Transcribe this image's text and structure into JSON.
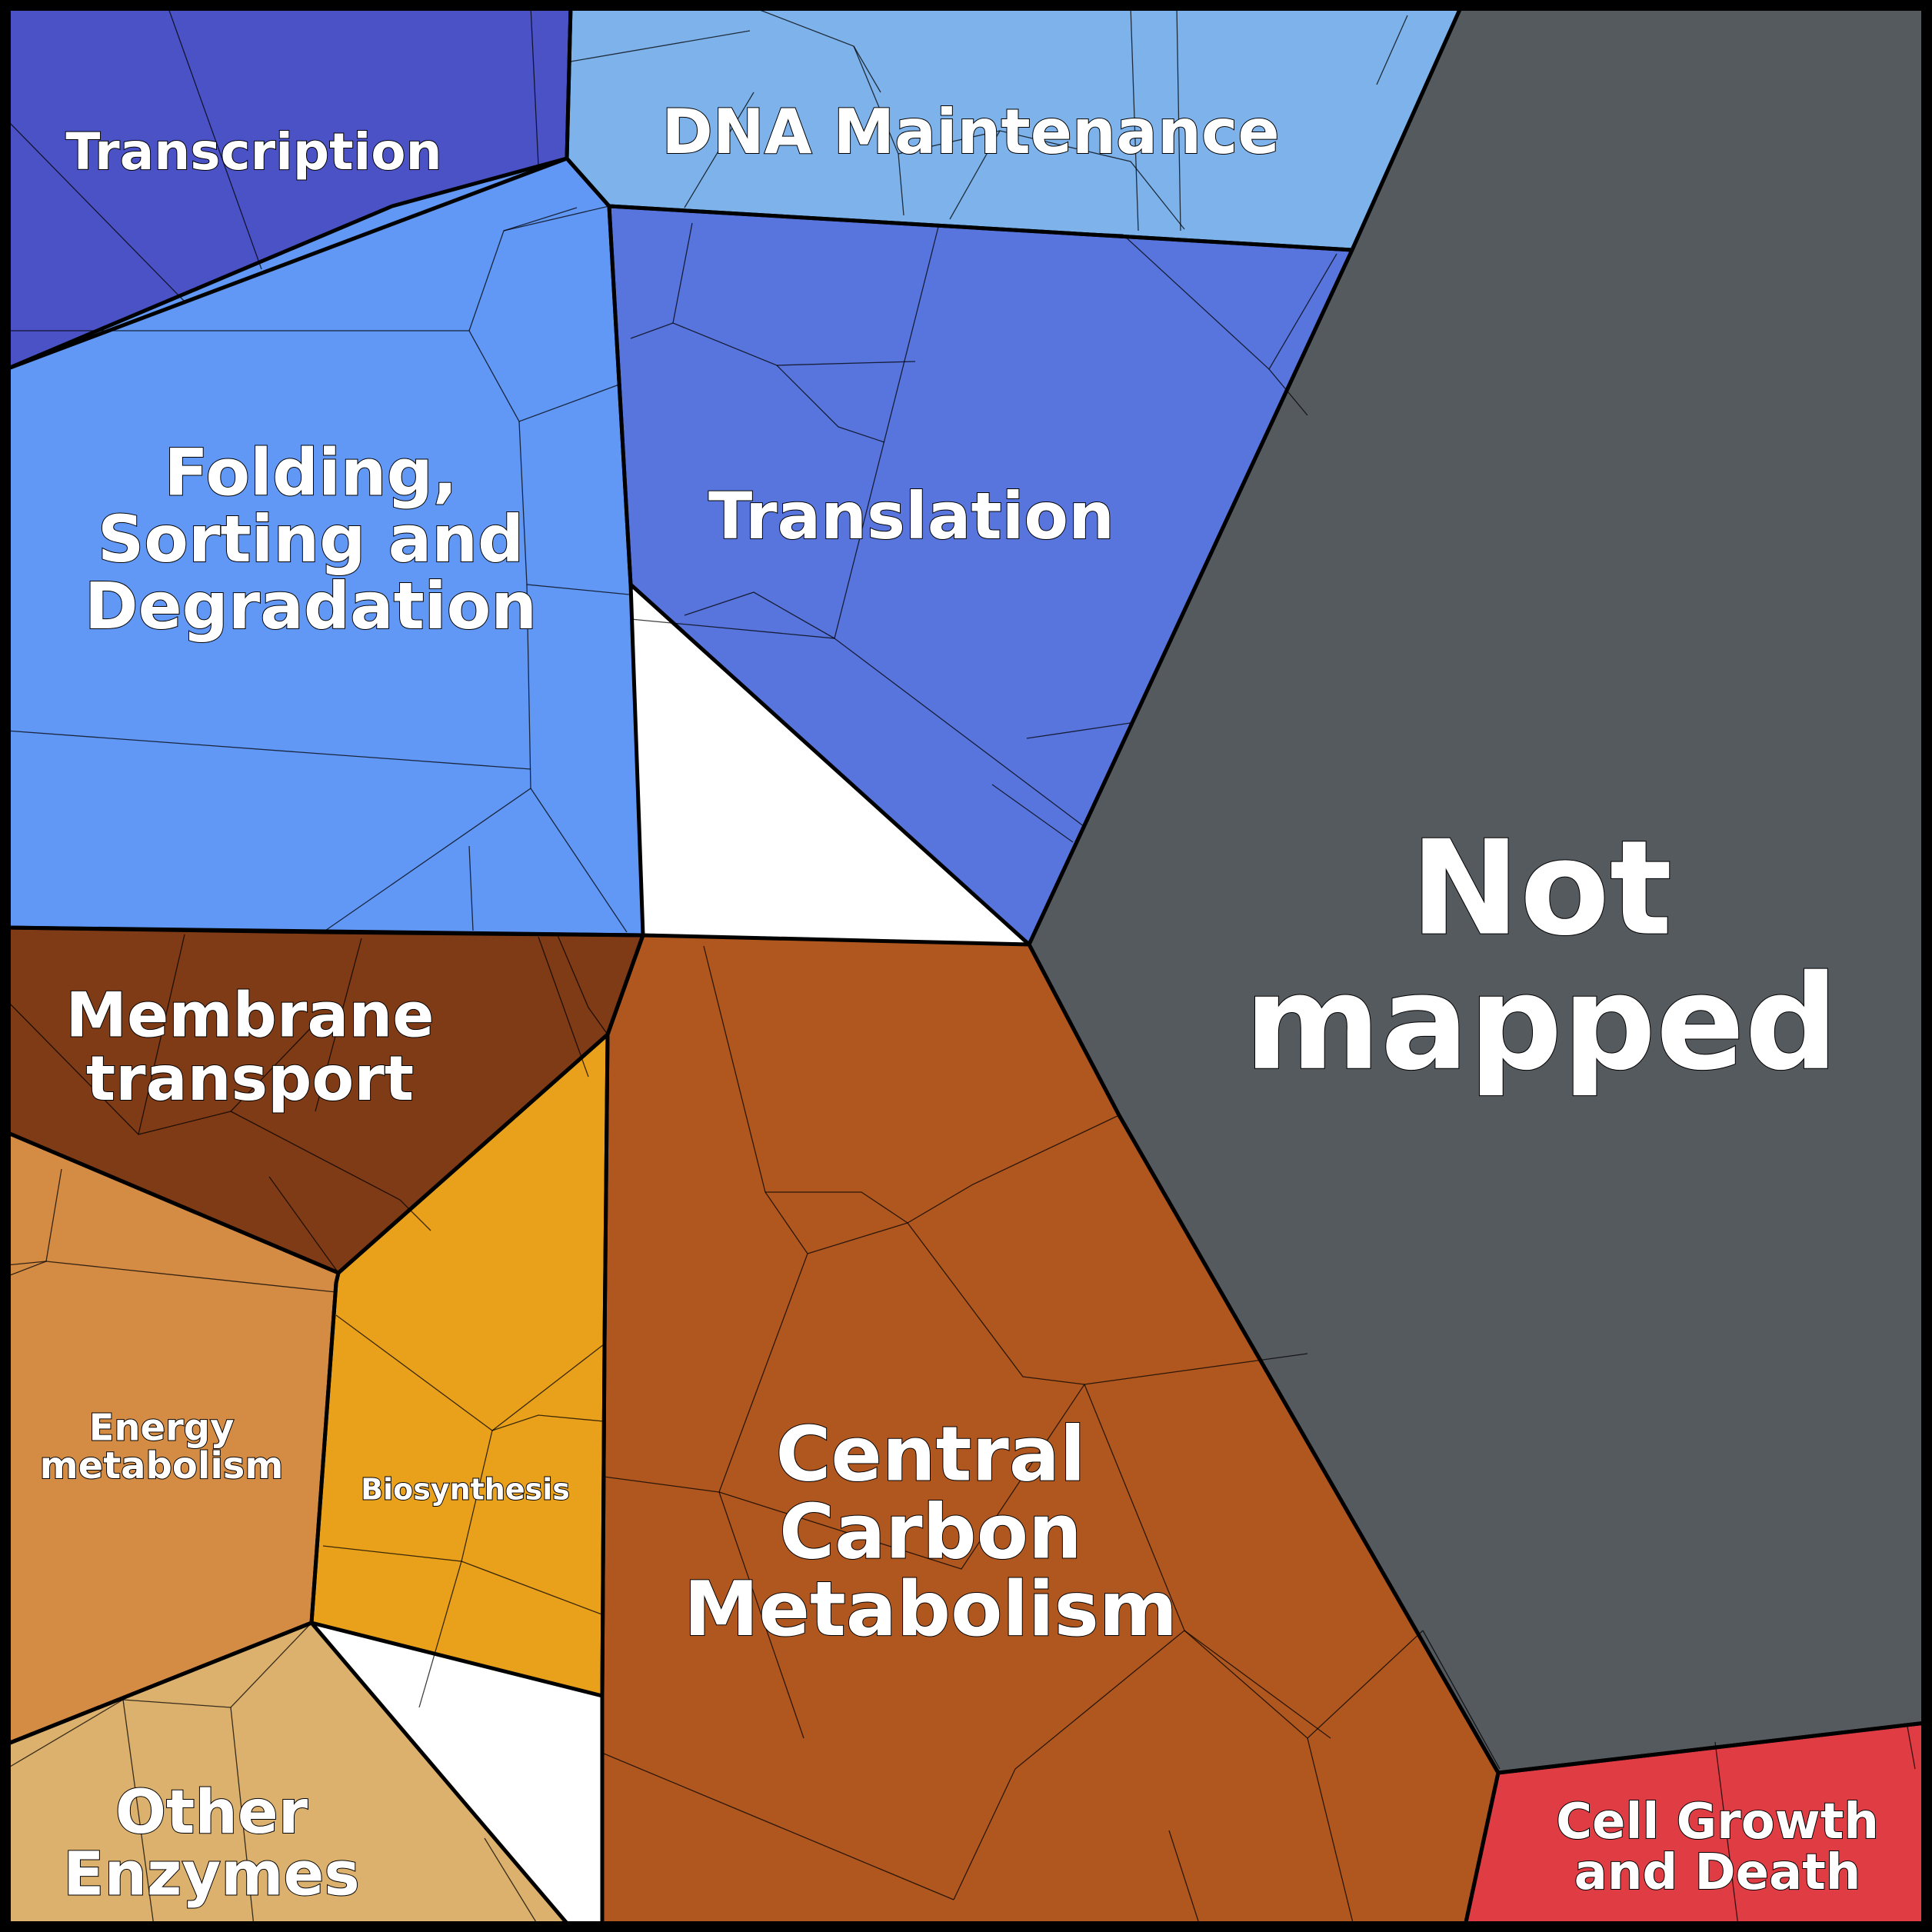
{
  "chart_data": {
    "type": "voronoi-treemap",
    "title": "",
    "categories": [
      {
        "name": "Transcription",
        "label_lines": [
          "Transcription"
        ],
        "color": "#4a52c6"
      },
      {
        "name": "DNA Maintenance",
        "label_lines": [
          "DNA Maintenance"
        ],
        "color": "#7db2ea"
      },
      {
        "name": "Translation",
        "label_lines": [
          "Translation"
        ],
        "color": "#5875dd"
      },
      {
        "name": "Folding, Sorting and Degradation",
        "label_lines": [
          "Folding,",
          "Sorting and",
          "Degradation"
        ],
        "color": "#6197f5"
      },
      {
        "name": "Not mapped",
        "label_lines": [
          "Not",
          "mapped"
        ],
        "color": "#555a5f"
      },
      {
        "name": "Membrane transport",
        "label_lines": [
          "Membrane",
          "transport"
        ],
        "color": "#7f3a16"
      },
      {
        "name": "Energy metabolism",
        "label_lines": [
          "Energy",
          "metabolism"
        ],
        "color": "#d48c45"
      },
      {
        "name": "Biosynthesis",
        "label_lines": [
          "Biosynthesis"
        ],
        "color": "#e9a11b"
      },
      {
        "name": "Central Carbon Metabolism",
        "label_lines": [
          "Central",
          "Carbon",
          "Metabolism"
        ],
        "color": "#b0571f"
      },
      {
        "name": "Other Enzymes",
        "label_lines": [
          "Other",
          "Enzymes"
        ],
        "color": "#dcb06d"
      },
      {
        "name": "Cell Growth and Death",
        "label_lines": [
          "Cell Growth",
          "and Death"
        ],
        "color": "#e03c44"
      }
    ]
  }
}
